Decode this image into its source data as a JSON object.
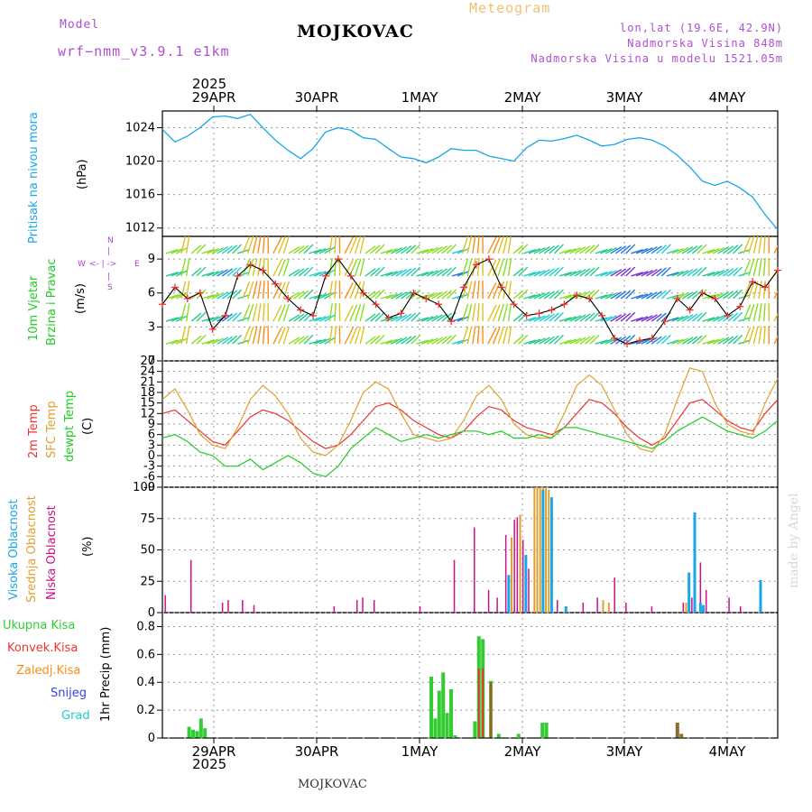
{
  "header": {
    "model_label": "Model",
    "model_name": "wrf−nmm_v3.9.1  e1km",
    "title": "MOJKOVAC",
    "chart_name": "Meteogram",
    "lonlat": "lon,lat (19.6E, 42.9N)",
    "altitude": "Nadmorska Visina 848m",
    "model_altitude": "Nadmorska Visina u modelu 1521.05m",
    "footer": "MOJKOVAC",
    "watermark": "made by Angel",
    "year_top": "2025",
    "year_bottom": "2025"
  },
  "colors": {
    "pressure": "#1aa6e8",
    "t2m": "#ee3333",
    "sfc": "#e0a030",
    "dew": "#22cc22",
    "high_cloud": "#1aa6e8",
    "mid_cloud": "#e0a030",
    "low_cloud": "#cc1188",
    "rain": "#33cc33",
    "conv": "#ee3333",
    "frz": "#ff8c1a",
    "snow": "#3344dd",
    "grad": "#22cccc",
    "wind_dir": "#aa44cc"
  },
  "chart_data": [
    {
      "type": "line",
      "name": "pressure",
      "ylabel_main": "Pritisak na nivou mora",
      "ylabel_unit": "(hPa)",
      "x_ticks": [
        "29APR",
        "30APR",
        "1MAY",
        "2MAY",
        "3MAY",
        "4MAY"
      ],
      "yticks": [
        1012,
        1016,
        1020,
        1024
      ],
      "ylim": [
        1011,
        1026
      ],
      "x_hours": [
        0,
        3,
        6,
        9,
        12,
        15,
        18,
        21,
        24,
        27,
        30,
        33,
        36,
        39,
        42,
        45,
        48,
        51,
        54,
        57,
        60,
        63,
        66,
        69,
        72,
        75,
        78,
        81,
        84,
        87,
        90,
        93,
        96,
        99,
        102,
        105,
        108,
        111,
        114,
        117,
        120,
        123,
        126,
        129,
        132,
        135,
        138,
        141,
        144,
        147
      ],
      "values": [
        1023.8,
        1022.3,
        1023.0,
        1024.0,
        1025.3,
        1025.4,
        1025.1,
        1025.6,
        1024.0,
        1022.5,
        1021.3,
        1020.3,
        1021.5,
        1023.5,
        1024.0,
        1023.7,
        1022.8,
        1022.6,
        1021.5,
        1020.5,
        1020.3,
        1019.8,
        1020.5,
        1021.5,
        1021.3,
        1021.3,
        1020.6,
        1020.3,
        1020.0,
        1021.6,
        1022.5,
        1022.4,
        1022.7,
        1023.1,
        1022.5,
        1021.8,
        1022.0,
        1022.6,
        1022.8,
        1022.5,
        1021.8,
        1020.7,
        1019.3,
        1017.6,
        1017.1,
        1017.6,
        1016.8,
        1015.7,
        1013.6,
        1011.8
      ],
      "grid": true
    },
    {
      "type": "line",
      "name": "wind",
      "ylabel_main": "10m Vjetar",
      "ylabel_main2": "Brzina i Pravac",
      "ylabel_unit": "(m/s)",
      "compass": [
        "N",
        "W",
        "E",
        "S"
      ],
      "yticks": [
        0,
        3,
        6,
        9
      ],
      "ylim": [
        0,
        11
      ],
      "values": [
        5.0,
        6.5,
        5.5,
        6.0,
        2.8,
        4.0,
        7.5,
        8.5,
        8.0,
        6.8,
        5.5,
        4.5,
        4.0,
        7.5,
        9.0,
        7.5,
        6.0,
        5.0,
        3.8,
        4.2,
        6.0,
        5.5,
        5.0,
        3.5,
        6.5,
        8.5,
        9.0,
        6.5,
        5.0,
        4.0,
        4.2,
        4.5,
        5.0,
        5.8,
        5.5,
        4.0,
        2.0,
        1.5,
        1.8,
        2.0,
        3.5,
        5.5,
        4.5,
        6.0,
        5.5,
        4.0,
        4.8,
        7.0,
        6.5,
        8.0
      ],
      "grid": true
    },
    {
      "type": "line",
      "name": "temperature",
      "ylabel_t2m": "2m Temp",
      "ylabel_sfc": "SFC Temp",
      "ylabel_dew": "dewpt Temp",
      "ylabel_unit": "(C)",
      "yticks": [
        -9,
        -6,
        -3,
        0,
        3,
        6,
        9,
        12,
        15,
        18,
        21,
        24,
        27
      ],
      "ylim": [
        -9,
        27
      ],
      "series": [
        {
          "name": "2m Temp",
          "values": [
            12,
            13,
            10,
            7,
            4,
            3,
            7,
            11,
            13,
            12,
            10,
            7,
            4,
            2,
            3,
            6,
            10,
            14,
            15,
            13,
            10,
            8,
            6,
            5,
            7,
            11,
            14,
            13,
            10,
            8,
            7,
            6,
            8,
            12,
            16,
            15,
            12,
            8,
            5,
            3,
            5,
            10,
            15,
            16,
            13,
            10,
            8,
            7,
            12,
            16
          ]
        },
        {
          "name": "SFC Temp",
          "values": [
            16,
            19,
            13,
            6,
            3,
            2,
            8,
            16,
            20,
            17,
            12,
            5,
            1,
            0,
            3,
            10,
            18,
            21,
            19,
            12,
            6,
            5,
            4,
            5,
            10,
            17,
            20,
            16,
            9,
            6,
            5,
            5,
            12,
            20,
            23,
            20,
            13,
            6,
            2,
            1,
            6,
            16,
            25,
            24,
            15,
            9,
            7,
            6,
            15,
            22
          ]
        },
        {
          "name": "dewpt Temp",
          "values": [
            5,
            6,
            4,
            1,
            0,
            -3,
            -3,
            -1,
            -4,
            -2,
            0,
            -2,
            -5,
            -6,
            -3,
            2,
            5,
            8,
            6,
            4,
            5,
            6,
            5,
            6,
            7,
            7,
            6,
            7,
            5,
            5,
            6,
            5,
            8,
            8,
            7,
            6,
            5,
            4,
            3,
            2,
            4,
            7,
            9,
            11,
            9,
            7,
            6,
            5,
            7,
            10
          ]
        }
      ],
      "grid": true
    },
    {
      "type": "bar",
      "name": "clouds",
      "ylabel_high": "Visoka Oblacnost",
      "ylabel_mid": "Srednja Oblacnost",
      "ylabel_low": "Niska Oblacnost",
      "ylabel_unit": "(%)",
      "yticks": [
        0,
        25,
        50,
        75,
        100
      ],
      "ylim": [
        0,
        100
      ],
      "series": [
        {
          "name": "Niska Oblacnost",
          "points": [
            [
              1,
              14
            ],
            [
              10,
              42
            ],
            [
              21,
              8
            ],
            [
              23,
              10
            ],
            [
              28,
              10
            ],
            [
              32,
              6
            ],
            [
              60,
              5
            ],
            [
              68,
              10
            ],
            [
              70,
              12
            ],
            [
              74,
              10
            ],
            [
              90,
              5
            ],
            [
              102,
              42
            ],
            [
              109,
              68
            ],
            [
              114,
              18
            ],
            [
              117,
              12
            ],
            [
              120,
              62
            ],
            [
              123,
              74
            ],
            [
              124,
              76
            ],
            [
              126,
              58
            ],
            [
              128,
              35
            ],
            [
              130,
              42
            ],
            [
              138,
              10
            ],
            [
              147,
              8
            ],
            [
              152,
              12
            ],
            [
              158,
              28
            ],
            [
              162,
              8
            ],
            [
              171,
              5
            ],
            [
              182,
              8
            ],
            [
              185,
              12
            ],
            [
              188,
              40
            ],
            [
              190,
              18
            ],
            [
              198,
              12
            ],
            [
              202,
              5
            ]
          ]
        },
        {
          "name": "Srednja Oblacnost",
          "points": [
            [
              122,
              60
            ],
            [
              125,
              78
            ],
            [
              130,
              100
            ],
            [
              131,
              100
            ],
            [
              132,
              100
            ],
            [
              133,
              100
            ],
            [
              134,
              100
            ],
            [
              135,
              98
            ],
            [
              154,
              10
            ],
            [
              156,
              8
            ],
            [
              183,
              8
            ],
            [
              186,
              34
            ]
          ]
        },
        {
          "name": "Visoka Oblacnost",
          "points": [
            [
              121,
              30
            ],
            [
              127,
              46
            ],
            [
              133,
              98
            ],
            [
              136,
              92
            ],
            [
              141,
              5
            ],
            [
              184,
              32
            ],
            [
              186,
              80
            ],
            [
              188,
              8
            ],
            [
              189,
              6
            ],
            [
              209,
              26
            ]
          ]
        }
      ],
      "grid": true
    },
    {
      "type": "bar",
      "name": "precipitation",
      "ylabel_unit": "1hr Precip (mm)",
      "legend": [
        "Ukupna Kisa",
        "Konvek.Kisa",
        "Zaledj.Kisa",
        "Snijeg",
        "Grad"
      ],
      "yticks": [
        0,
        0.2,
        0.4,
        0.6,
        0.8
      ],
      "ylim": [
        0,
        0.9
      ],
      "series": [
        {
          "name": "Ukupna Kisa",
          "points": [
            [
              4,
              0.08
            ],
            [
              5,
              0.06
            ],
            [
              6,
              0.05
            ],
            [
              7,
              0.14
            ],
            [
              8,
              0.07
            ],
            [
              65,
              0.44
            ],
            [
              66,
              0.14
            ],
            [
              67,
              0.34
            ],
            [
              68,
              0.47
            ],
            [
              69,
              0.18
            ],
            [
              70,
              0.35
            ],
            [
              71,
              0.02
            ],
            [
              76,
              0.12
            ],
            [
              77,
              0.73
            ],
            [
              78,
              0.71
            ],
            [
              80,
              0.41
            ],
            [
              82,
              0.03
            ],
            [
              87,
              0.03
            ],
            [
              93,
              0.11
            ],
            [
              94,
              0.11
            ]
          ]
        },
        {
          "name": "Konvek.Kisa",
          "points": [
            [
              77,
              0.5
            ],
            [
              78,
              0.5
            ],
            [
              80,
              0.4
            ]
          ]
        },
        {
          "name": "Snijeg",
          "points": []
        },
        {
          "name": "Zaledj.Kisa",
          "points": [
            [
              127,
              0.11
            ],
            [
              128,
              0.03
            ]
          ]
        }
      ],
      "grid": true
    }
  ]
}
